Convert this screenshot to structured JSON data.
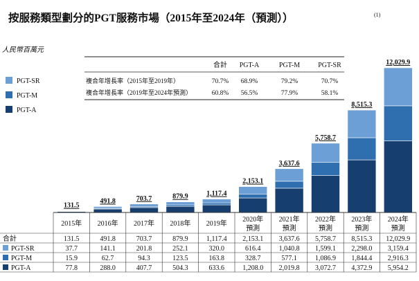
{
  "chart_data": {
    "type": "bar",
    "stacked": true,
    "title": "按服務類型劃分的PGT服務市場（2015年至2024年（預測））",
    "title_note": "(1)",
    "unit_label": "人民幣百萬元",
    "categories": [
      "2015年",
      "2016年",
      "2017年",
      "2018年",
      "2019年",
      "2020年預測",
      "2021年預測",
      "2022年預測",
      "2023年預測",
      "2024年預測"
    ],
    "category_lines": [
      [
        "2015年"
      ],
      [
        "2016年"
      ],
      [
        "2017年"
      ],
      [
        "2018年"
      ],
      [
        "2019年"
      ],
      [
        "2020年",
        "預測"
      ],
      [
        "2021年",
        "預測"
      ],
      [
        "2022年",
        "預測"
      ],
      [
        "2023年",
        "預測"
      ],
      [
        "2024年",
        "預測"
      ]
    ],
    "totals": [
      131.5,
      491.8,
      703.7,
      879.9,
      1117.4,
      2153.1,
      3637.6,
      5758.7,
      8515.3,
      12029.9
    ],
    "total_labels": [
      "131.5",
      "491.8",
      "703.7",
      "879.9",
      "1,117.4",
      "2,153.1",
      "3,637.6",
      "5,758.7",
      "8,515.3",
      "12,029.9"
    ],
    "series": [
      {
        "name": "PGT-A",
        "color": "#163e6e",
        "values": [
          77.8,
          288.0,
          407.7,
          504.3,
          633.6,
          1208.0,
          2019.8,
          3072.7,
          4372.9,
          5954.2
        ],
        "labels": [
          "77.8",
          "288.0",
          "407.7",
          "504.3",
          "633.6",
          "1,208.0",
          "2,019.8",
          "3,072.7",
          "4,372.9",
          "5,954.2"
        ]
      },
      {
        "name": "PGT-M",
        "color": "#2f6fb0",
        "values": [
          15.9,
          62.7,
          94.3,
          123.5,
          163.8,
          328.7,
          577.1,
          1086.9,
          1844.4,
          2916.3
        ],
        "labels": [
          "15.9",
          "62.7",
          "94.3",
          "123.5",
          "163.8",
          "328.7",
          "577.1",
          "1,086.9",
          "1,844.4",
          "2,916.3"
        ]
      },
      {
        "name": "PGT-SR",
        "color": "#6b9fd6",
        "values": [
          37.7,
          141.1,
          201.8,
          252.1,
          320.0,
          616.4,
          1040.8,
          1599.1,
          2298.0,
          3159.4
        ],
        "labels": [
          "37.7",
          "141.1",
          "201.8",
          "252.1",
          "320.0",
          "616.4",
          "1,040.8",
          "1,599.1",
          "2,298.0",
          "3,159.4"
        ]
      }
    ],
    "legend_order": [
      "PGT-SR",
      "PGT-M",
      "PGT-A"
    ],
    "legend_placement": "left",
    "ylim": [
      0,
      12029.9
    ],
    "grid": false,
    "cagr_table": {
      "headers": [
        "合計",
        "PGT-A",
        "PGT-M",
        "PGT-SR"
      ],
      "rows": [
        {
          "label": "複合年增長率（2015年至2019年）",
          "values": [
            "70.7%",
            "68.9%",
            "79.2%",
            "70.7%"
          ]
        },
        {
          "label": "複合年增長率（2019年至2024年預測）",
          "values": [
            "60.8%",
            "56.5%",
            "77.9%",
            "58.1%"
          ]
        }
      ]
    },
    "data_table": {
      "total_label": "合計",
      "row_order": [
        "PGT-SR",
        "PGT-M",
        "PGT-A"
      ]
    }
  }
}
